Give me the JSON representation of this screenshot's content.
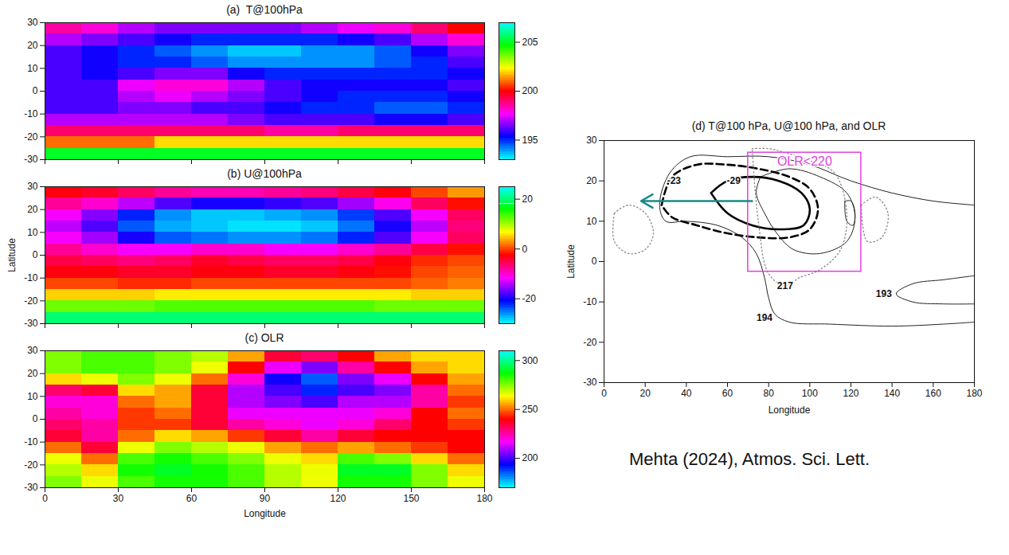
{
  "chart_data": [
    {
      "type": "heatmap",
      "title": "(a)  T@100hPa",
      "x": [
        7.5,
        22.5,
        37.5,
        52.5,
        67.5,
        82.5,
        97.5,
        112.5,
        127.5,
        142.5,
        157.5,
        172.5
      ],
      "y": [
        -27.5,
        -22.5,
        -17.5,
        -12.5,
        -7.5,
        -2.5,
        2.5,
        7.5,
        12.5,
        17.5,
        22.5,
        27.5
      ],
      "cells": [
        [
          205,
          205,
          205,
          205,
          205,
          205,
          205,
          205,
          205,
          205,
          205,
          205
        ],
        [
          201,
          201,
          201,
          202,
          202,
          202,
          202,
          202,
          202,
          202,
          202,
          202
        ],
        [
          199,
          199,
          199,
          199,
          199,
          199,
          198.5,
          198.5,
          199,
          199,
          199,
          199
        ],
        [
          197,
          197,
          197,
          197,
          197,
          196.5,
          196,
          196,
          196,
          195.5,
          195.5,
          196
        ],
        [
          196,
          196,
          196.5,
          196.5,
          196,
          196,
          195.5,
          195,
          195,
          194.5,
          194.5,
          195
        ],
        [
          196,
          196,
          197,
          197.5,
          197,
          196.5,
          196,
          195.5,
          195,
          195,
          195,
          195.5
        ],
        [
          196,
          196,
          197.5,
          198,
          198,
          197,
          196,
          195.5,
          195.5,
          195.5,
          195.5,
          196
        ],
        [
          196,
          195.5,
          196,
          196.5,
          196.5,
          195.5,
          195,
          195,
          195,
          195,
          195,
          195.5
        ],
        [
          196,
          195.5,
          195,
          195,
          194.5,
          194,
          194,
          194,
          194,
          194.5,
          195,
          196
        ],
        [
          196,
          195.5,
          195,
          194.5,
          194,
          193.5,
          193.5,
          194,
          194,
          194.5,
          195.5,
          196.5
        ],
        [
          197,
          196.5,
          196,
          195.5,
          195,
          195,
          195,
          195,
          195.5,
          196,
          197,
          198
        ],
        [
          198.5,
          198,
          197,
          196.5,
          196.5,
          196.5,
          196.5,
          197,
          197.5,
          198,
          199,
          200
        ]
      ],
      "xlim": [
        0,
        180
      ],
      "ylim": [
        -30,
        30
      ],
      "xticks": [
        0,
        30,
        60,
        90,
        120,
        150,
        180
      ],
      "yticks": [
        -30,
        -20,
        -10,
        0,
        10,
        20,
        30
      ],
      "tick_labels": "y",
      "colorbar": {
        "range": [
          193,
          207
        ],
        "ticks": [
          195,
          200,
          205
        ]
      }
    },
    {
      "type": "heatmap",
      "title": "(b) U@100hPa",
      "ylabel": "Latitude",
      "x": [
        7.5,
        22.5,
        37.5,
        52.5,
        67.5,
        82.5,
        97.5,
        112.5,
        127.5,
        142.5,
        157.5,
        172.5
      ],
      "y": [
        -27.5,
        -22.5,
        -17.5,
        -12.5,
        -7.5,
        -2.5,
        2.5,
        7.5,
        12.5,
        17.5,
        22.5,
        27.5
      ],
      "cells": [
        [
          20,
          20,
          20,
          20,
          20,
          20,
          20,
          20,
          20,
          20,
          20,
          20
        ],
        [
          12,
          12,
          12,
          13,
          13,
          13,
          13,
          13,
          13,
          12,
          12,
          12
        ],
        [
          5,
          5,
          5,
          6,
          6,
          6,
          6,
          6,
          6,
          6,
          5,
          5
        ],
        [
          0,
          0,
          -1,
          -1,
          0,
          0,
          0,
          0,
          0,
          0,
          1,
          2
        ],
        [
          -3,
          -3,
          -4,
          -4,
          -3,
          -3,
          -4,
          -4,
          -3,
          -2,
          0,
          1
        ],
        [
          -5,
          -6,
          -7,
          -6,
          -4,
          -5,
          -6,
          -6,
          -5,
          -3,
          -1,
          0
        ],
        [
          -8,
          -10,
          -12,
          -12,
          -10,
          -10,
          -12,
          -12,
          -10,
          -8,
          -5,
          -2
        ],
        [
          -12,
          -15,
          -20,
          -24,
          -25,
          -26,
          -26,
          -25,
          -22,
          -18,
          -12,
          -6
        ],
        [
          -14,
          -18,
          -24,
          -27,
          -28,
          -29,
          -29,
          -28,
          -25,
          -20,
          -14,
          -7
        ],
        [
          -12,
          -16,
          -22,
          -26,
          -28,
          -28,
          -27,
          -26,
          -23,
          -18,
          -12,
          -6
        ],
        [
          -8,
          -10,
          -14,
          -18,
          -20,
          -20,
          -19,
          -18,
          -15,
          -11,
          -6,
          -2
        ],
        [
          -3,
          -4,
          -6,
          -8,
          -9,
          -9,
          -8,
          -7,
          -5,
          -3,
          0,
          3
        ]
      ],
      "xlim": [
        0,
        180
      ],
      "ylim": [
        -30,
        30
      ],
      "xticks": [
        0,
        30,
        60,
        90,
        120,
        150,
        180
      ],
      "yticks": [
        -30,
        -20,
        -10,
        0,
        10,
        20,
        30
      ],
      "tick_labels": "y",
      "colorbar": {
        "range": [
          -30,
          25
        ],
        "ticks": [
          -20,
          0,
          20
        ]
      }
    },
    {
      "type": "heatmap",
      "title": "(c) OLR",
      "xlabel": "Longitude",
      "x": [
        7.5,
        22.5,
        37.5,
        52.5,
        67.5,
        82.5,
        97.5,
        112.5,
        127.5,
        142.5,
        157.5,
        172.5
      ],
      "y": [
        -27.5,
        -22.5,
        -17.5,
        -12.5,
        -7.5,
        -2.5,
        2.5,
        7.5,
        12.5,
        17.5,
        22.5,
        27.5
      ],
      "cells": [
        [
          275,
          265,
          280,
          285,
          285,
          280,
          270,
          265,
          285,
          285,
          275,
          265
        ],
        [
          270,
          260,
          285,
          290,
          285,
          280,
          270,
          265,
          290,
          290,
          275,
          260
        ],
        [
          265,
          250,
          280,
          285,
          280,
          275,
          265,
          260,
          280,
          275,
          260,
          250
        ],
        [
          250,
          235,
          265,
          275,
          270,
          265,
          255,
          250,
          255,
          250,
          245,
          240
        ],
        [
          235,
          225,
          250,
          260,
          255,
          245,
          235,
          225,
          235,
          240,
          240,
          240
        ],
        [
          230,
          225,
          245,
          245,
          235,
          225,
          220,
          215,
          220,
          230,
          240,
          245
        ],
        [
          225,
          220,
          245,
          250,
          235,
          215,
          215,
          215,
          215,
          220,
          240,
          250
        ],
        [
          220,
          220,
          250,
          255,
          235,
          210,
          205,
          200,
          210,
          210,
          225,
          245
        ],
        [
          230,
          235,
          260,
          255,
          235,
          210,
          200,
          190,
          200,
          205,
          225,
          250
        ],
        [
          260,
          265,
          275,
          265,
          250,
          220,
          195,
          185,
          205,
          215,
          240,
          255
        ],
        [
          275,
          280,
          280,
          275,
          265,
          240,
          215,
          205,
          225,
          240,
          255,
          260
        ],
        [
          275,
          280,
          280,
          275,
          270,
          255,
          235,
          230,
          240,
          255,
          260,
          260
        ]
      ],
      "xlim": [
        0,
        180
      ],
      "ylim": [
        -30,
        30
      ],
      "xticks": [
        0,
        30,
        60,
        90,
        120,
        150,
        180
      ],
      "yticks": [
        -30,
        -20,
        -10,
        0,
        10,
        20,
        30
      ],
      "colorbar": {
        "range": [
          170,
          310
        ],
        "ticks": [
          200,
          250,
          300
        ]
      }
    },
    {
      "type": "contour",
      "title": "(d) T@100 hPa, U@100 hPa, and OLR",
      "xlabel": "Longitude",
      "ylabel": "Latitude",
      "xlim": [
        0,
        180
      ],
      "ylim": [
        -30,
        30
      ],
      "xticks": [
        0,
        20,
        40,
        60,
        80,
        100,
        120,
        140,
        160,
        180
      ],
      "yticks": [
        -30,
        -20,
        -10,
        0,
        10,
        20,
        30
      ],
      "series": [
        {
          "color": "#222222",
          "contours": [
            {
              "line_style": "solid",
              "x": [
                180,
                160,
                140,
                120,
                100,
                80,
                60,
                42,
                32,
                27,
                30,
                40,
                55,
                67,
                74,
                78,
                80,
                83,
                90,
                110,
                140,
                165,
                180
              ],
              "y": [
                14,
                15,
                17,
                20,
                24,
                26,
                26,
                26,
                22,
                14,
                10,
                10,
                9,
                6,
                2,
                -4,
                -9,
                -13,
                -15,
                -15.5,
                -16,
                -15.5,
                -15
              ]
            },
            {
              "line_style": "solid",
              "x": [
                180,
                165,
                150,
                142,
                150,
                165,
                180
              ],
              "y": [
                -3.5,
                -4.5,
                -5.5,
                -8,
                -10,
                -10.5,
                -10.5
              ]
            },
            {
              "line_style": "solid",
              "x": [
                76,
                90,
                105,
                118,
                122,
                118,
                105,
                92,
                84,
                78,
                74,
                76
              ],
              "y": [
                21,
                23,
                21,
                17,
                11,
                5,
                2,
                3,
                7,
                12,
                17,
                21
              ]
            },
            {
              "line_style": "solid",
              "x": [
                117,
                120,
                122,
                121,
                118,
                117
              ],
              "y": [
                15,
                15,
                12,
                9,
                10,
                15
              ]
            }
          ]
        },
        {
          "color": "#000000",
          "contours": [
            {
              "line_style": "thick-dashed",
              "x": [
                28,
                33,
                45,
                60,
                75,
                90,
                100,
                104,
                100,
                90,
                75,
                60,
                45,
                33,
                28
              ],
              "y": [
                14,
                21,
                24,
                24,
                23,
                21,
                18,
                13,
                8,
                6,
                6,
                7,
                9,
                11,
                14
              ]
            },
            {
              "line_style": "thick",
              "x": [
                52,
                60,
                72,
                85,
                96,
                100,
                97,
                85,
                72,
                60,
                52
              ],
              "y": [
                17,
                20,
                21,
                20,
                17,
                13,
                9,
                8,
                9,
                12,
                17
              ]
            }
          ]
        },
        {
          "color": "#888888",
          "contours": [
            {
              "line_style": "dotted",
              "x": [
                5,
                12,
                20,
                24,
                20,
                12,
                5,
                5
              ],
              "y": [
                12,
                14,
                12,
                7,
                3,
                2,
                5,
                12
              ]
            },
            {
              "line_style": "dotted",
              "x": [
                72,
                80,
                88,
                100,
                112,
                118,
                115,
                105,
                95,
                88,
                80,
                75,
                72
              ],
              "y": [
                28,
                28,
                27,
                25,
                22,
                12,
                3,
                -2,
                -4,
                -6,
                -3,
                10,
                28
              ]
            },
            {
              "line_style": "dotted",
              "x": [
                125,
                132,
                138,
                135,
                128,
                125
              ],
              "y": [
                14,
                16,
                12,
                6,
                5,
                14
              ]
            }
          ]
        }
      ],
      "annotations": [
        {
          "text": "-23",
          "x": 34,
          "y": 20
        },
        {
          "text": "-29",
          "x": 63,
          "y": 20
        },
        {
          "text": "217",
          "x": 88,
          "y": -6
        },
        {
          "text": "194",
          "x": 78,
          "y": -14
        },
        {
          "text": "193",
          "x": 136,
          "y": -8
        }
      ],
      "box": {
        "label": "OLR<220",
        "color": "#e040e0",
        "x": [
          70,
          125
        ],
        "y": [
          -2.5,
          27
        ]
      },
      "arrow": {
        "color": "#1a8a8a",
        "x": [
          72,
          18
        ],
        "y": [
          15,
          15
        ]
      }
    }
  ],
  "caption": "Mehta (2024), Atmos. Sci. Lett."
}
